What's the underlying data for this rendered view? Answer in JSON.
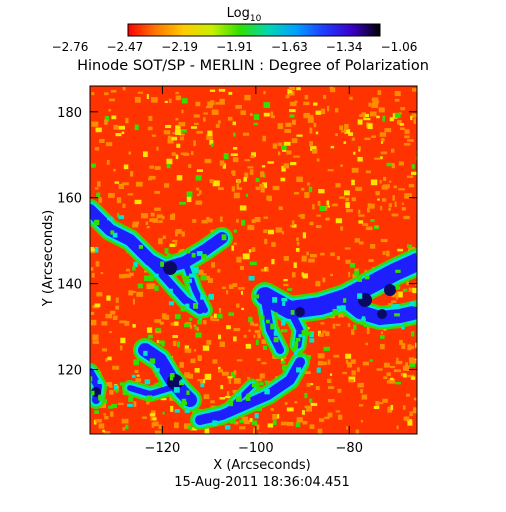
{
  "colorbar": {
    "label": "Log",
    "subscript": "10",
    "ticks": [
      "-2.76",
      "-2.47",
      "-2.19",
      "-1.91",
      "-1.63",
      "-1.34",
      "-1.06"
    ],
    "stops": [
      "#ff0000",
      "#ff7800",
      "#ffcc00",
      "#c8f000",
      "#30e000",
      "#00d8b0",
      "#00a0ff",
      "#1e3cff",
      "#3c00c8",
      "#000000"
    ]
  },
  "title": "Hinode SOT/SP - MERLIN : Degree of Polarization",
  "x_axis": {
    "label": "X (Arcseconds)",
    "ticks": [
      {
        "value": -120,
        "label": "-120"
      },
      {
        "value": -100,
        "label": "-100"
      },
      {
        "value": -80,
        "label": "-80"
      }
    ],
    "range": [
      -135.5,
      -65.5
    ]
  },
  "y_axis": {
    "label": "Y (Arcseconds)",
    "ticks": [
      {
        "value": 120,
        "label": "120"
      },
      {
        "value": 140,
        "label": "140"
      },
      {
        "value": 160,
        "label": "160"
      },
      {
        "value": 180,
        "label": "180"
      }
    ],
    "range": [
      105,
      186
    ]
  },
  "timestamp": "15-Aug-2011 18:36:04.451",
  "colors": {
    "background": "#ff3300",
    "speckle": "#ff8c00",
    "speckle_light": "#ffe600",
    "edge": "#32e000",
    "cyan": "#00e5d0",
    "blue": "#1e1eff",
    "dark": "#0a0a64"
  }
}
